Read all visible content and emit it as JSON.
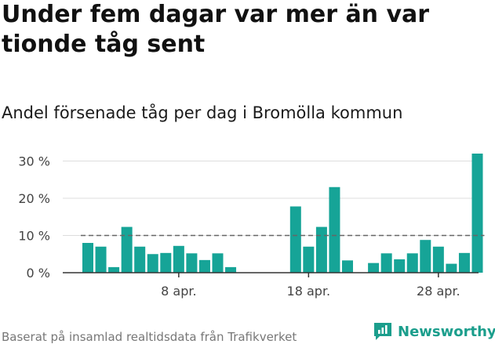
{
  "header": {
    "title": "Under fem dagar var mer än var tionde tåg sent",
    "subtitle": "Andel försenade tåg per dag i Bromölla kommun"
  },
  "footer": {
    "source": "Baserat på insamlad realtidsdata från Trafikverket",
    "brand": "Newsworthy"
  },
  "colors": {
    "bar": "#16a497",
    "reference_line": "#666666",
    "grid": "#dddddd",
    "brand": "#1b9e8c"
  },
  "chart_data": {
    "type": "bar",
    "x_start": "2024-04-01",
    "values": [
      8.0,
      7.0,
      1.5,
      12.3,
      7.0,
      5.0,
      5.3,
      7.2,
      5.2,
      3.4,
      5.2,
      1.5,
      null,
      null,
      null,
      null,
      17.8,
      7.0,
      12.3,
      23.0,
      3.3,
      null,
      2.6,
      5.2,
      3.6,
      5.2,
      8.8,
      7.0,
      2.4,
      5.3,
      32.0
    ],
    "reference_line": 10,
    "reference_line_style": "dashed",
    "y_ticks": [
      0,
      10,
      20,
      30
    ],
    "y_tick_labels": [
      "0 %",
      "10 %",
      "20 %",
      "30 %"
    ],
    "ylim": [
      0,
      32
    ],
    "x_ticks": [
      "2024-04-08",
      "2024-04-18",
      "2024-04-28"
    ],
    "x_tick_labels": [
      "8 apr.",
      "18 apr.",
      "28 apr."
    ],
    "grid": true,
    "legend": "none"
  }
}
